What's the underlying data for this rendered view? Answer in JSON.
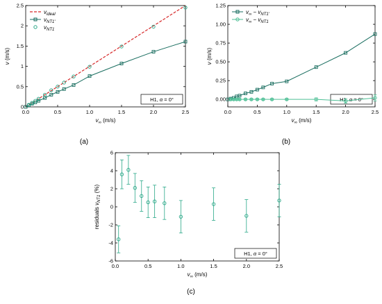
{
  "colors": {
    "ideal": "#d62728",
    "nt1p": "#1a6e60",
    "nt1": "#2aa888",
    "diff2": "#4dbf95",
    "axis": "#000000"
  },
  "chart_data": [
    {
      "id": "a",
      "type": "line",
      "caption": "(a)",
      "xlabel_main": "v",
      "xlabel_sub": "∞",
      "xlabel_unit": " (m/s)",
      "ylabel": "v (m/s)",
      "xlim": [
        0,
        2.5
      ],
      "ylim": [
        0,
        2.5
      ],
      "xticks": [
        "0.0",
        "0.5",
        "1.0",
        "1.5",
        "2.0",
        "2.5"
      ],
      "yticks": [
        "0",
        "0.5",
        "1",
        "1.5",
        "2",
        "2.5"
      ],
      "grid": false,
      "legend_position": "top-left",
      "annotation": "H1, α = 0°",
      "series": [
        {
          "name": "v_ideal",
          "legend_main": "v",
          "legend_sub": "ideal",
          "style": "dashed",
          "color": "#d62728",
          "x": [
            0,
            2.5
          ],
          "y": [
            0,
            2.5
          ]
        },
        {
          "name": "v_NT1'",
          "legend_main": "v",
          "legend_sub": "NT1'",
          "style": "line-square",
          "color": "#1a6e60",
          "x": [
            0.0,
            0.05,
            0.1,
            0.15,
            0.2,
            0.3,
            0.4,
            0.5,
            0.6,
            0.75,
            1.0,
            1.5,
            2.0,
            2.5
          ],
          "y": [
            0.0,
            0.04,
            0.08,
            0.11,
            0.15,
            0.22,
            0.3,
            0.37,
            0.44,
            0.54,
            0.76,
            1.07,
            1.36,
            1.61
          ]
        },
        {
          "name": "v_NT1",
          "legend_main": "v",
          "legend_sub": "NT1",
          "style": "circle",
          "color": "#2aa888",
          "x": [
            0.05,
            0.1,
            0.15,
            0.2,
            0.3,
            0.4,
            0.5,
            0.6,
            0.75,
            1.0,
            1.5,
            2.0,
            2.5
          ],
          "y": [
            0.05,
            0.1,
            0.15,
            0.2,
            0.3,
            0.41,
            0.5,
            0.6,
            0.75,
            0.99,
            1.49,
            1.98,
            2.45
          ]
        }
      ]
    },
    {
      "id": "b",
      "type": "line",
      "caption": "(b)",
      "xlabel_main": "v",
      "xlabel_sub": "∞",
      "xlabel_unit": " (m/s)",
      "ylabel": "v (m/s)",
      "xlim": [
        0,
        2.5
      ],
      "ylim": [
        -0.1,
        1.25
      ],
      "xticks": [
        "0.0",
        "0.5",
        "1.0",
        "1.5",
        "2.0",
        "2.5"
      ],
      "yticks": [
        "0.00",
        "0.25",
        "0.50",
        "0.75",
        "1.00",
        "1.25"
      ],
      "grid": false,
      "legend_position": "top-left",
      "annotation": "H1, α = 0°",
      "series": [
        {
          "name": "v∞ − v_NT1'",
          "legend_main": "v",
          "legend_sub1": "∞",
          "legend_mid": " − v",
          "legend_sub2": "NT1'",
          "style": "line-square",
          "color": "#1a6e60",
          "x": [
            0.0,
            0.05,
            0.1,
            0.15,
            0.2,
            0.3,
            0.4,
            0.5,
            0.6,
            0.75,
            1.0,
            1.5,
            2.0,
            2.5
          ],
          "y": [
            0.0,
            0.01,
            0.02,
            0.04,
            0.05,
            0.08,
            0.1,
            0.13,
            0.16,
            0.21,
            0.24,
            0.43,
            0.62,
            0.87
          ]
        },
        {
          "name": "v∞ − v_NT1",
          "legend_main": "v",
          "legend_sub1": "∞",
          "legend_mid": " − v",
          "legend_sub2": "NT1",
          "style": "line-circle",
          "color": "#4dbf95",
          "x": [
            0.05,
            0.1,
            0.15,
            0.2,
            0.3,
            0.4,
            0.5,
            0.6,
            0.75,
            1.0,
            1.5,
            2.0,
            2.5
          ],
          "y": [
            0.0,
            0.0,
            0.0,
            0.0,
            0.0,
            0.0,
            0.0,
            0.0,
            0.0,
            0.0,
            0.0,
            -0.02,
            0.02
          ],
          "err": [
            0.01,
            0.01,
            0.01,
            0.01,
            0.01,
            0.01,
            0.01,
            0.01,
            0.01,
            0.01,
            0.02,
            0.03,
            0.04
          ]
        }
      ]
    },
    {
      "id": "c",
      "type": "scatter",
      "caption": "(c)",
      "xlabel_main": "v",
      "xlabel_sub": "∞",
      "xlabel_unit": " (m/s)",
      "ylabel_main": "residuals v",
      "ylabel_sub": "NT1",
      "ylabel_unit": " (%)",
      "xlim": [
        0,
        2.5
      ],
      "ylim": [
        -6,
        6
      ],
      "xticks": [
        "0.0",
        "0.5",
        "1.0",
        "1.5",
        "2.0",
        "2.5"
      ],
      "yticks": [
        "-6",
        "-4",
        "-2",
        "0",
        "2",
        "4",
        "6"
      ],
      "grid": false,
      "annotation": "H1, α = 0°",
      "series": [
        {
          "name": "residuals",
          "style": "circle-errorbar",
          "color": "#2aa888",
          "x": [
            0.05,
            0.1,
            0.2,
            0.3,
            0.4,
            0.5,
            0.6,
            0.75,
            1.0,
            1.5,
            2.0,
            2.5
          ],
          "y": [
            -3.6,
            3.6,
            4.1,
            2.1,
            1.2,
            0.5,
            0.6,
            0.4,
            -1.1,
            0.3,
            -1.0,
            0.7
          ],
          "err": [
            1.5,
            1.6,
            1.6,
            1.6,
            1.7,
            1.7,
            1.8,
            1.8,
            1.8,
            1.8,
            1.8,
            1.8
          ]
        }
      ]
    }
  ]
}
